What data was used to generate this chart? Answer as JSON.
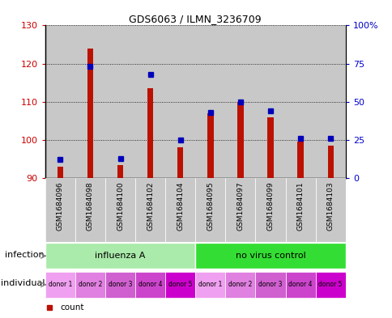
{
  "title": "GDS6063 / ILMN_3236709",
  "samples": [
    "GSM1684096",
    "GSM1684098",
    "GSM1684100",
    "GSM1684102",
    "GSM1684104",
    "GSM1684095",
    "GSM1684097",
    "GSM1684099",
    "GSM1684101",
    "GSM1684103"
  ],
  "count_values": [
    93,
    124,
    93.5,
    113.5,
    98,
    107,
    110,
    106,
    99.5,
    98.5
  ],
  "percentile_values": [
    12,
    73,
    13,
    68,
    25,
    43,
    50,
    44,
    26,
    26
  ],
  "ylim_left": [
    90,
    130
  ],
  "ylim_right": [
    0,
    100
  ],
  "yticks_left": [
    90,
    100,
    110,
    120,
    130
  ],
  "yticks_right": [
    0,
    25,
    50,
    75,
    100
  ],
  "ytick_labels_right": [
    "0",
    "25",
    "50",
    "75",
    "100%"
  ],
  "infection_groups": [
    {
      "label": "influenza A",
      "start": 0,
      "end": 5,
      "color": "#AAEAAA"
    },
    {
      "label": "no virus control",
      "start": 5,
      "end": 10,
      "color": "#33DD33"
    }
  ],
  "individual_colors_cycle": [
    "#F0A0F0",
    "#E080E0",
    "#D060D0",
    "#CC44CC",
    "#CC00CC"
  ],
  "individual_labels": [
    "donor 1",
    "donor 2",
    "donor 3",
    "donor 4",
    "donor 5",
    "donor 1",
    "donor 2",
    "donor 3",
    "donor 4",
    "donor 5"
  ],
  "bar_color": "#BB1100",
  "percentile_color": "#0000BB",
  "bg_color": "#C8C8C8",
  "left_tick_color": "#CC0000",
  "right_tick_color": "#0000CC"
}
